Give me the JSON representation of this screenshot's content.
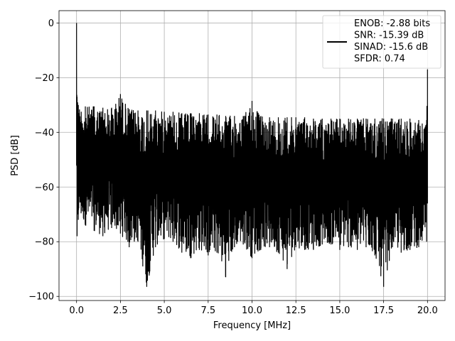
{
  "chart_data": {
    "type": "line",
    "xlabel": "Frequency [MHz]",
    "ylabel": "PSD [dB]",
    "xlim": [
      -1.0,
      21.0
    ],
    "ylim": [
      -101.5,
      4.5
    ],
    "x_ticks": [
      0.0,
      2.5,
      5.0,
      7.5,
      10.0,
      12.5,
      15.0,
      17.5,
      20.0
    ],
    "x_tick_labels": [
      "0.0",
      "2.5",
      "5.0",
      "7.5",
      "10.0",
      "12.5",
      "15.0",
      "17.5",
      "20.0"
    ],
    "y_ticks": [
      0,
      -20,
      -40,
      -60,
      -80,
      -100
    ],
    "y_tick_labels": [
      "0",
      "−20",
      "−40",
      "−60",
      "−80",
      "−100"
    ],
    "grid": true,
    "legend_position": "top-right",
    "legend_lines": [
      "ENOB: -2.88 bits",
      "SNR: -15.39 dB",
      "SINAD: -15.6 dB",
      "SFDR: 0.74"
    ],
    "series": [
      {
        "color": "#000000",
        "x": [
          0.0,
          0.03,
          0.06,
          0.1,
          0.5,
          1.0,
          1.5,
          2.0,
          2.5,
          3.0,
          3.5,
          4.0,
          4.5,
          5.0,
          5.5,
          6.0,
          6.5,
          7.0,
          7.5,
          8.0,
          8.5,
          9.0,
          9.5,
          10.0,
          10.5,
          11.0,
          11.5,
          12.0,
          12.5,
          13.0,
          13.5,
          14.0,
          14.5,
          15.0,
          15.5,
          16.0,
          16.5,
          17.0,
          17.5,
          18.0,
          18.5,
          19.0,
          19.5,
          19.95,
          20.0
        ],
        "upper": [
          0,
          -27,
          -29,
          -30,
          -30.5,
          -30.5,
          -31,
          -31,
          -26,
          -31.5,
          -32,
          -32,
          -32,
          -32.5,
          -32.5,
          -33,
          -33,
          -33,
          -33.5,
          -33.5,
          -34,
          -34,
          -34,
          -28.5,
          -34,
          -34.5,
          -34.5,
          -34.5,
          -34.5,
          -34.5,
          -35,
          -35,
          -35,
          -35,
          -35,
          -35,
          -35,
          -35,
          -35,
          -35,
          -35,
          -35,
          -35.5,
          -35.5,
          -17
        ],
        "lower": [
          -52,
          -78,
          -70,
          -72,
          -74,
          -76,
          -78,
          -75,
          -77,
          -82,
          -80,
          -96.5,
          -82,
          -79,
          -80,
          -84,
          -86,
          -83,
          -85,
          -84,
          -93,
          -82,
          -81,
          -86,
          -83,
          -82,
          -84,
          -90,
          -82,
          -83,
          -83,
          -81,
          -81,
          -83,
          -82,
          -83,
          -82,
          -85,
          -96.5,
          -82,
          -84,
          -83,
          -82,
          -80,
          -66
        ]
      }
    ]
  }
}
